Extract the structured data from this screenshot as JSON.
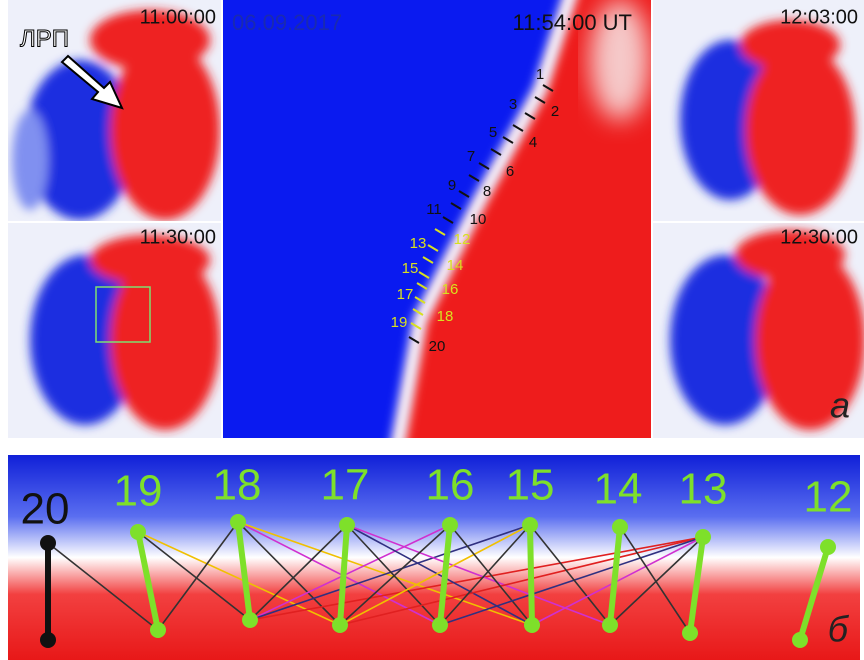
{
  "panels": {
    "top_left": {
      "time": "11:00:00",
      "pointer": "ЛРП"
    },
    "middle_left": {
      "time": "11:30:00"
    },
    "center": {
      "date": "06.09.2017",
      "time": "11:54:00 UT",
      "markers": [
        "1",
        "2",
        "3",
        "4",
        "5",
        "6",
        "7",
        "8",
        "9",
        "10",
        "11",
        "12",
        "13",
        "14",
        "15",
        "16",
        "17",
        "18",
        "19",
        "20"
      ]
    },
    "top_right": {
      "time": "12:03:00"
    },
    "middle_right": {
      "time": "12:30:00"
    },
    "label": "а"
  },
  "strip": {
    "label": "б",
    "markers": [
      "20",
      "19",
      "18",
      "17",
      "16",
      "15",
      "14",
      "13",
      "12"
    ]
  }
}
